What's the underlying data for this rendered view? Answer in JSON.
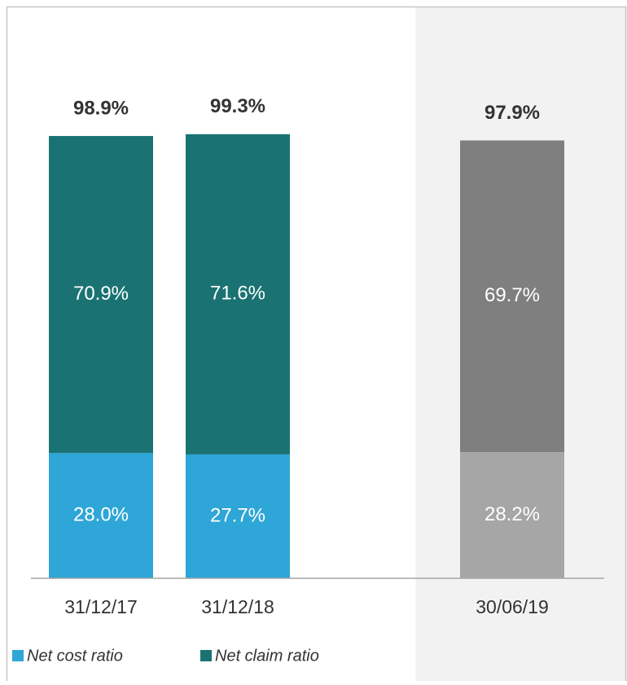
{
  "chart_data": {
    "type": "stacked_bar",
    "categories": [
      "31/12/17",
      "31/12/18",
      "30/06/19"
    ],
    "series": [
      {
        "name": "Net cost ratio",
        "color": "#2ea6d7",
        "colors": [
          "#2ea6d7",
          "#2ea6d7",
          "#a6a6a6"
        ],
        "values": [
          28.0,
          27.7,
          28.2
        ],
        "value_labels": [
          "28.0%",
          "27.7%",
          "28.2%"
        ]
      },
      {
        "name": "Net claim ratio",
        "color": "#1a7372",
        "colors": [
          "#1a7372",
          "#1a7372",
          "#7f7f7f"
        ],
        "values": [
          70.9,
          71.6,
          69.7
        ],
        "value_labels": [
          "70.9%",
          "71.6%",
          "69.7%"
        ]
      }
    ],
    "totals": [
      98.9,
      99.3,
      97.9
    ],
    "total_labels": [
      "98.9%",
      "99.3%",
      "97.9%"
    ],
    "shaded_categories": [
      2
    ],
    "ylim": [
      0,
      110
    ],
    "legend": "bottom-left"
  }
}
